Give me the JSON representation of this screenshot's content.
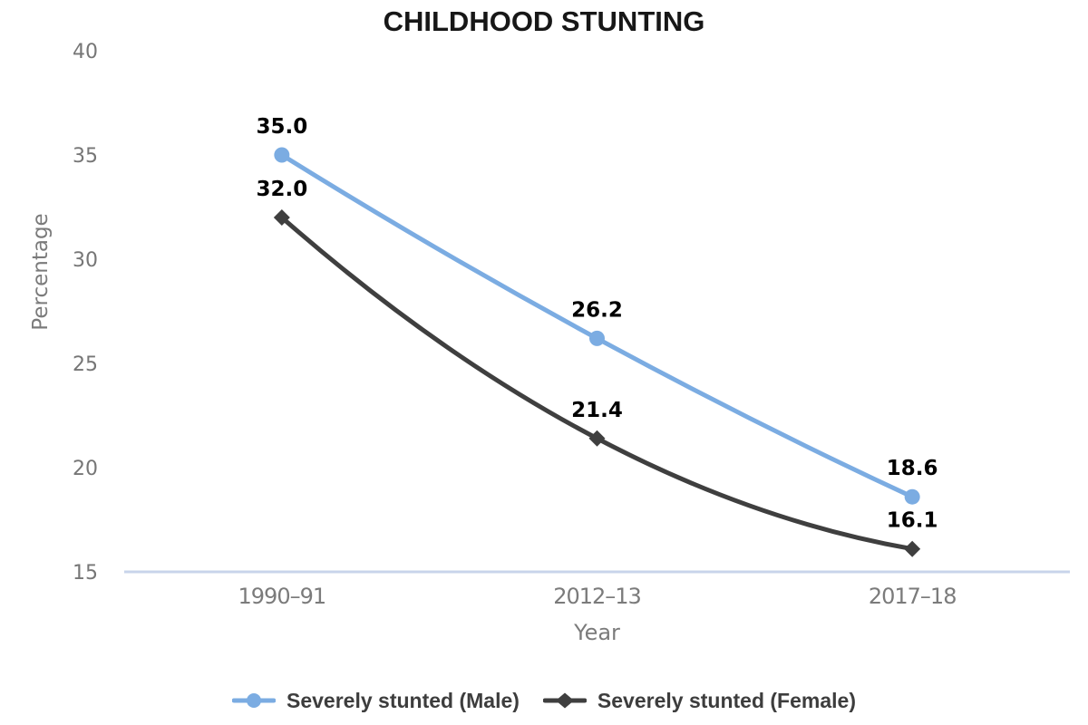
{
  "chart_data": {
    "type": "line",
    "title": "CHILDHOOD STUNTING",
    "xlabel": "Year",
    "ylabel": "Percentage",
    "categories": [
      "1990–91",
      "2012–13",
      "2017–18"
    ],
    "ylim": [
      15,
      40
    ],
    "yticks": [
      15,
      20,
      25,
      30,
      35,
      40
    ],
    "grid": false,
    "line_style": "smooth",
    "legend_position": "bottom",
    "axis_line_color": "#C8D4EA",
    "tick_color": "#7B7B7B",
    "data_label_color": "#000000",
    "legend_text_color": "#3D3D3D",
    "series": [
      {
        "name": "Severely stunted (Male)",
        "color": "#7BACE2",
        "marker": "circle",
        "values": [
          35.0,
          26.2,
          18.6
        ],
        "labels": [
          "35.0",
          "26.2",
          "18.6"
        ]
      },
      {
        "name": "Severely stunted (Female)",
        "color": "#3F3F3F",
        "marker": "diamond",
        "values": [
          32.0,
          21.4,
          16.1
        ],
        "labels": [
          "32.0",
          "21.4",
          "16.1"
        ]
      }
    ]
  }
}
